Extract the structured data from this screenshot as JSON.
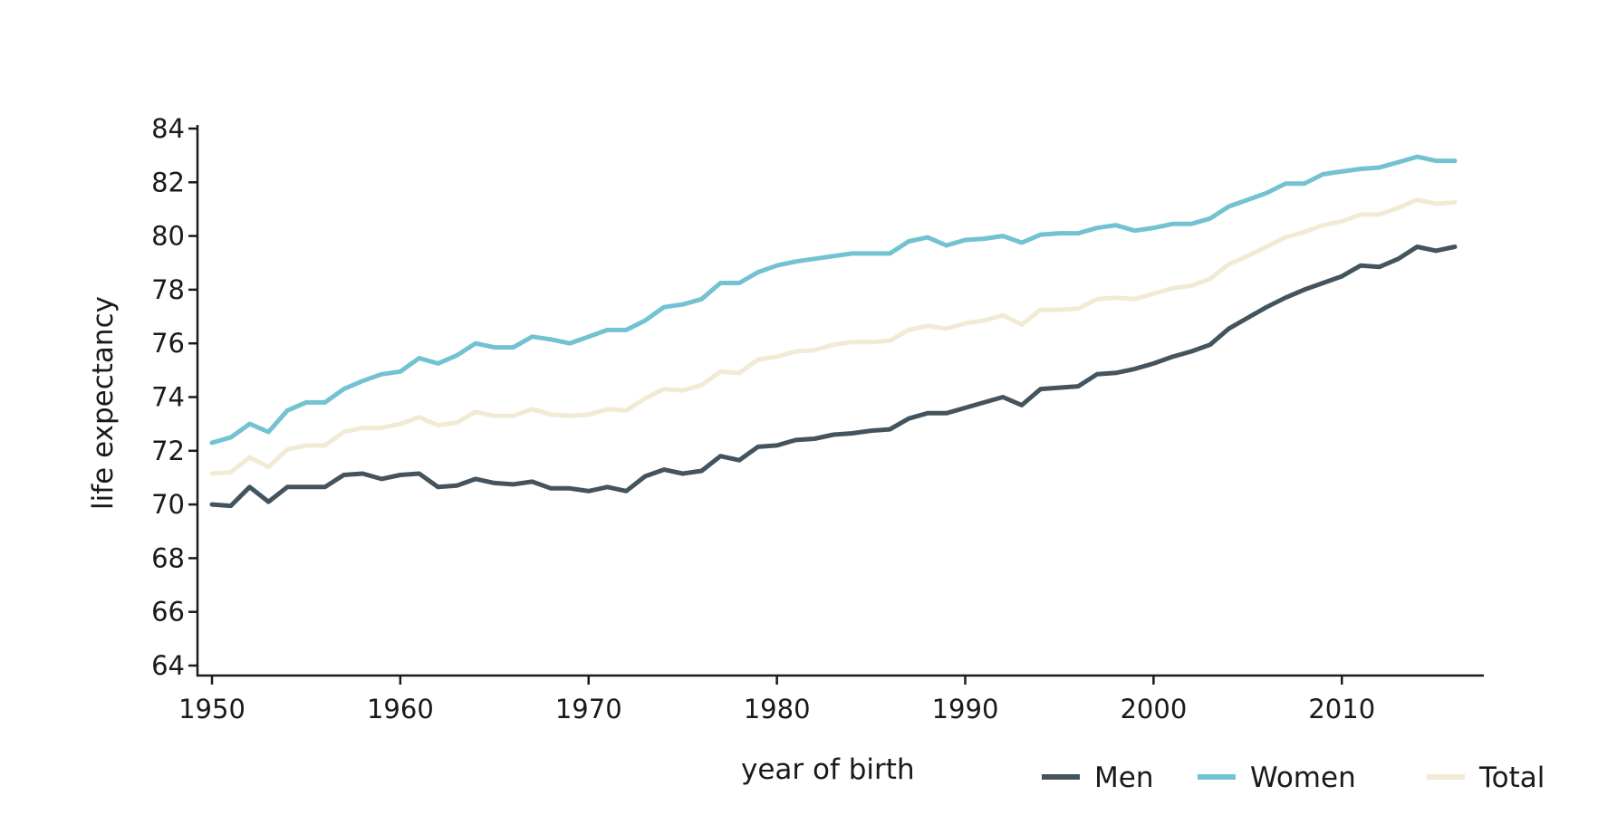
{
  "chart_data": {
    "type": "line",
    "xlabel": "year of birth",
    "ylabel": "life expectancy",
    "xlim": [
      1950,
      2016
    ],
    "ylim": [
      64,
      84
    ],
    "x_ticks": [
      1950,
      1960,
      1970,
      1980,
      1990,
      2000,
      2010
    ],
    "y_ticks": [
      64,
      66,
      68,
      70,
      72,
      74,
      76,
      78,
      80,
      82,
      84
    ],
    "grid": false,
    "legend_position": "bottom-right",
    "x": [
      1950,
      1951,
      1952,
      1953,
      1954,
      1955,
      1956,
      1957,
      1958,
      1959,
      1960,
      1961,
      1962,
      1963,
      1964,
      1965,
      1966,
      1967,
      1968,
      1969,
      1970,
      1971,
      1972,
      1973,
      1974,
      1975,
      1976,
      1977,
      1978,
      1979,
      1980,
      1981,
      1982,
      1983,
      1984,
      1985,
      1986,
      1987,
      1988,
      1989,
      1990,
      1991,
      1992,
      1993,
      1994,
      1995,
      1996,
      1997,
      1998,
      1999,
      2000,
      2001,
      2002,
      2003,
      2004,
      2005,
      2006,
      2007,
      2008,
      2009,
      2010,
      2011,
      2012,
      2013,
      2014,
      2015,
      2016
    ],
    "series": [
      {
        "name": "Men",
        "color": "#44545f",
        "values": [
          70.0,
          69.95,
          70.65,
          70.1,
          70.65,
          70.65,
          70.65,
          71.1,
          71.15,
          70.95,
          71.1,
          71.15,
          70.65,
          70.7,
          70.95,
          70.8,
          70.75,
          70.85,
          70.6,
          70.6,
          70.5,
          70.65,
          70.5,
          71.05,
          71.3,
          71.15,
          71.25,
          71.8,
          71.65,
          72.15,
          72.2,
          72.4,
          72.45,
          72.6,
          72.65,
          72.75,
          72.8,
          73.2,
          73.4,
          73.4,
          73.6,
          73.8,
          74.0,
          73.7,
          74.3,
          74.35,
          74.4,
          74.85,
          74.9,
          75.05,
          75.25,
          75.5,
          75.7,
          75.95,
          76.55,
          76.95,
          77.35,
          77.7,
          78.0,
          78.25,
          78.5,
          78.9,
          78.85,
          79.15,
          79.6,
          79.45,
          79.6
        ]
      },
      {
        "name": "Women",
        "color": "#72c2d1",
        "values": [
          72.3,
          72.5,
          73.0,
          72.7,
          73.5,
          73.8,
          73.8,
          74.3,
          74.6,
          74.85,
          74.95,
          75.45,
          75.25,
          75.55,
          76.0,
          75.85,
          75.85,
          76.25,
          76.15,
          76.0,
          76.25,
          76.5,
          76.5,
          76.85,
          77.35,
          77.45,
          77.65,
          78.25,
          78.25,
          78.65,
          78.9,
          79.05,
          79.15,
          79.25,
          79.35,
          79.35,
          79.35,
          79.8,
          79.95,
          79.65,
          79.85,
          79.9,
          80.0,
          79.75,
          80.05,
          80.1,
          80.1,
          80.3,
          80.4,
          80.2,
          80.3,
          80.45,
          80.45,
          80.65,
          81.1,
          81.35,
          81.6,
          81.95,
          81.95,
          82.3,
          82.4,
          82.5,
          82.55,
          82.75,
          82.95,
          82.8,
          82.8
        ]
      },
      {
        "name": "Total",
        "color": "#f1ead5",
        "values": [
          71.15,
          71.2,
          71.75,
          71.4,
          72.05,
          72.2,
          72.2,
          72.7,
          72.85,
          72.85,
          73.0,
          73.25,
          72.95,
          73.05,
          73.45,
          73.3,
          73.3,
          73.55,
          73.35,
          73.3,
          73.35,
          73.55,
          73.5,
          73.95,
          74.3,
          74.25,
          74.45,
          74.95,
          74.9,
          75.4,
          75.5,
          75.7,
          75.75,
          75.95,
          76.05,
          76.05,
          76.1,
          76.5,
          76.65,
          76.55,
          76.75,
          76.85,
          77.05,
          76.7,
          77.25,
          77.25,
          77.3,
          77.65,
          77.7,
          77.65,
          77.85,
          78.05,
          78.15,
          78.4,
          78.95,
          79.25,
          79.6,
          79.95,
          80.15,
          80.4,
          80.55,
          80.8,
          80.8,
          81.05,
          81.35,
          81.2,
          81.25
        ]
      }
    ]
  }
}
